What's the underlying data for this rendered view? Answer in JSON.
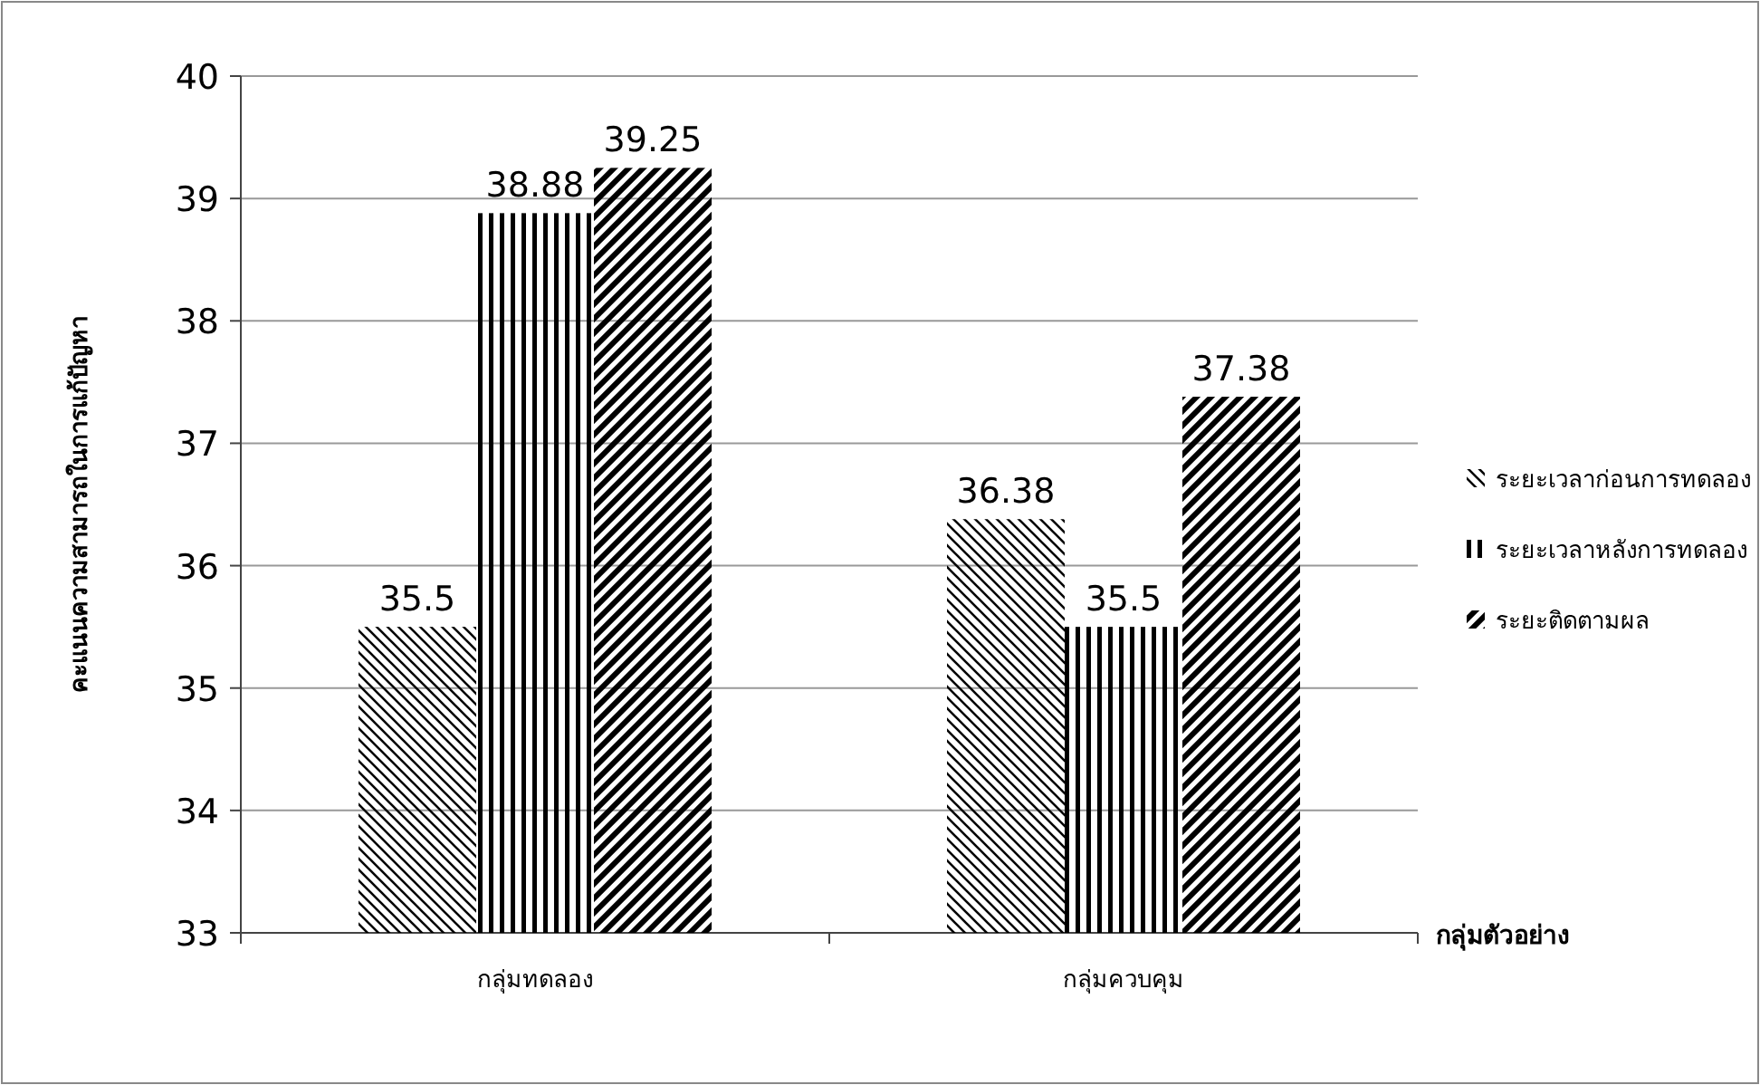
{
  "chart_data": {
    "type": "bar",
    "xlabel": "กลุ่มตัวอย่าง",
    "ylabel": "คะแนนความสามารถในการแก้ปัญหา",
    "categories": [
      "กลุ่มทดลอง",
      "กลุ่มควบคุม"
    ],
    "series": [
      {
        "name": "ระยะเวลาก่อนการทดลอง",
        "color": "#000000",
        "values": [
          35.5,
          36.38
        ]
      },
      {
        "name": "ระยะเวลาหลังการทดลอง",
        "color": "#000000",
        "values": [
          38.88,
          35.5
        ]
      },
      {
        "name": "ระยะติดตามผล",
        "color": "#000000",
        "values": [
          39.25,
          37.38
        ]
      }
    ],
    "ylim": [
      33,
      40
    ],
    "yticks": [
      33,
      34,
      35,
      36,
      37,
      38,
      39,
      40
    ],
    "grid": "y",
    "legend": "right",
    "data_labels": true
  }
}
